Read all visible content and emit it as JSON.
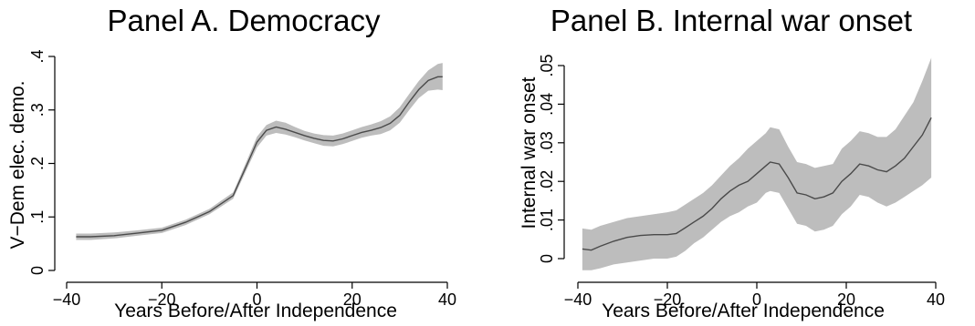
{
  "chart_data": [
    {
      "type": "line",
      "title": "Panel A. Democracy",
      "xlabel": "Years Before/After Independence",
      "ylabel": "V−Dem elec. demo.",
      "xlim": [
        -40,
        40
      ],
      "ylim": [
        0,
        0.4
      ],
      "xticks": [
        -40,
        -20,
        0,
        20,
        40
      ],
      "xtick_labels": [
        "−40",
        "−20",
        "0",
        "20",
        "40"
      ],
      "yticks": [
        0,
        0.1,
        0.2,
        0.3,
        0.4
      ],
      "ytick_labels": [
        "0",
        ".1",
        ".2",
        ".3",
        ".4"
      ],
      "grid": false,
      "fill_color": "#bdbdbd",
      "line_color": "#4a4a4a",
      "x": [
        -38,
        -35,
        -30,
        -25,
        -20,
        -15,
        -10,
        -5,
        -2,
        0,
        2,
        4,
        6,
        8,
        10,
        12,
        14,
        16,
        18,
        20,
        22,
        24,
        26,
        28,
        30,
        32,
        34,
        36,
        38,
        39
      ],
      "series": [
        {
          "values": [
            0.063,
            0.063,
            0.065,
            0.07,
            0.075,
            0.09,
            0.11,
            0.14,
            0.2,
            0.24,
            0.262,
            0.268,
            0.264,
            0.258,
            0.252,
            0.247,
            0.243,
            0.242,
            0.246,
            0.252,
            0.258,
            0.262,
            0.267,
            0.275,
            0.29,
            0.315,
            0.338,
            0.355,
            0.362,
            0.362
          ],
          "lower": [
            0.057,
            0.057,
            0.06,
            0.065,
            0.07,
            0.085,
            0.105,
            0.134,
            0.192,
            0.23,
            0.252,
            0.257,
            0.254,
            0.249,
            0.243,
            0.238,
            0.233,
            0.232,
            0.236,
            0.242,
            0.248,
            0.252,
            0.255,
            0.262,
            0.276,
            0.3,
            0.322,
            0.336,
            0.338,
            0.337
          ],
          "upper": [
            0.069,
            0.069,
            0.071,
            0.075,
            0.08,
            0.095,
            0.115,
            0.146,
            0.208,
            0.25,
            0.272,
            0.28,
            0.276,
            0.268,
            0.261,
            0.256,
            0.253,
            0.252,
            0.256,
            0.262,
            0.268,
            0.273,
            0.279,
            0.288,
            0.305,
            0.33,
            0.354,
            0.374,
            0.386,
            0.388
          ]
        }
      ]
    },
    {
      "type": "line",
      "title": "Panel B. Internal war onset",
      "xlabel": "Years Before/After Independence",
      "ylabel": "Internal war onset",
      "xlim": [
        -40,
        40
      ],
      "ylim": [
        0,
        0.05
      ],
      "xticks": [
        -40,
        -20,
        0,
        20,
        40
      ],
      "xtick_labels": [
        "−40",
        "−20",
        "0",
        "20",
        "40"
      ],
      "yticks": [
        0,
        0.01,
        0.02,
        0.03,
        0.04,
        0.05
      ],
      "ytick_labels": [
        "0",
        ".01",
        ".02",
        ".03",
        ".04",
        ".05"
      ],
      "grid": false,
      "fill_color": "#bdbdbd",
      "line_color": "#4a4a4a",
      "x": [
        -39,
        -37,
        -35,
        -32,
        -29,
        -26,
        -23,
        -20,
        -18,
        -16,
        -14,
        -12,
        -10,
        -8,
        -6,
        -4,
        -2,
        0,
        2,
        3,
        5,
        7,
        9,
        11,
        13,
        15,
        17,
        19,
        21,
        23,
        25,
        27,
        29,
        31,
        33,
        35,
        37,
        39
      ],
      "series": [
        {
          "values": [
            0.0025,
            0.0022,
            0.0032,
            0.0045,
            0.0055,
            0.006,
            0.0062,
            0.0062,
            0.0065,
            0.008,
            0.0095,
            0.011,
            0.013,
            0.0155,
            0.0175,
            0.019,
            0.02,
            0.022,
            0.024,
            0.025,
            0.0245,
            0.021,
            0.017,
            0.0165,
            0.0155,
            0.016,
            0.017,
            0.02,
            0.022,
            0.0245,
            0.024,
            0.023,
            0.0225,
            0.024,
            0.026,
            0.029,
            0.032,
            0.0365
          ],
          "lower": [
            -0.003,
            -0.003,
            -0.0025,
            -0.0015,
            -0.001,
            -0.0005,
            0.0,
            0.0,
            0.0005,
            0.002,
            0.004,
            0.0055,
            0.0075,
            0.0095,
            0.011,
            0.012,
            0.0135,
            0.0145,
            0.017,
            0.0175,
            0.017,
            0.013,
            0.009,
            0.0085,
            0.007,
            0.0075,
            0.0085,
            0.0115,
            0.0135,
            0.0165,
            0.016,
            0.0145,
            0.0135,
            0.0145,
            0.016,
            0.0175,
            0.019,
            0.021
          ],
          "upper": [
            0.0078,
            0.0075,
            0.0085,
            0.0095,
            0.0105,
            0.011,
            0.0115,
            0.012,
            0.0125,
            0.014,
            0.0155,
            0.017,
            0.019,
            0.0215,
            0.024,
            0.026,
            0.0285,
            0.0305,
            0.0325,
            0.034,
            0.0335,
            0.029,
            0.025,
            0.0245,
            0.0235,
            0.024,
            0.0245,
            0.0285,
            0.0305,
            0.033,
            0.0325,
            0.0315,
            0.0315,
            0.0335,
            0.037,
            0.0405,
            0.046,
            0.052
          ]
        }
      ]
    }
  ]
}
